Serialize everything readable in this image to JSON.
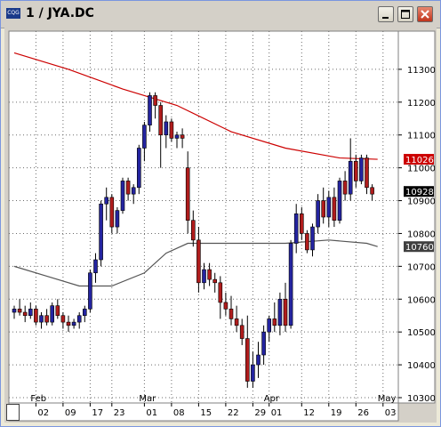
{
  "window": {
    "title": "1 / JYA.DC",
    "app_icon_label": "CQG",
    "icons": {
      "minimize": "minimize-icon",
      "maximize": "maximize-icon",
      "close": "close-icon"
    }
  },
  "chart_data": {
    "type": "candlestick",
    "symbol": "JYA.DC",
    "ylim": [
      10300,
      11400
    ],
    "y_ticks": [
      "11300",
      "11200",
      "11100",
      "11000",
      "10900",
      "10800",
      "10700",
      "10600",
      "10500",
      "10400",
      "10300"
    ],
    "month_labels": [
      {
        "label": "Feb",
        "bar": 4
      },
      {
        "label": "Mar",
        "bar": 24
      },
      {
        "label": "Apr",
        "bar": 47
      },
      {
        "label": "May",
        "bar": 68
      }
    ],
    "day_labels": [
      {
        "label": "02",
        "bar": 4
      },
      {
        "label": "09",
        "bar": 9
      },
      {
        "label": "17",
        "bar": 14
      },
      {
        "label": "23",
        "bar": 18
      },
      {
        "label": "01",
        "bar": 24
      },
      {
        "label": "08",
        "bar": 29
      },
      {
        "label": "15",
        "bar": 34
      },
      {
        "label": "22",
        "bar": 39
      },
      {
        "label": "29",
        "bar": 44
      },
      {
        "label": "01",
        "bar": 47
      },
      {
        "label": "12",
        "bar": 53
      },
      {
        "label": "19",
        "bar": 58
      },
      {
        "label": "26",
        "bar": 63
      },
      {
        "label": "03",
        "bar": 68
      }
    ],
    "price_labels": [
      {
        "label": "11026",
        "value": 11026,
        "color": "#cc0000",
        "text_color": "#ffffff"
      },
      {
        "label": "10928",
        "value": 10928,
        "color": "#000000",
        "text_color": "#ffffff"
      },
      {
        "label": "10760",
        "value": 10760,
        "color": "#404040",
        "text_color": "#ffffff"
      }
    ],
    "candles": [
      [
        10560,
        10580,
        10540,
        10570
      ],
      [
        10570,
        10600,
        10550,
        10560
      ],
      [
        10560,
        10580,
        10530,
        10550
      ],
      [
        10550,
        10590,
        10540,
        10570
      ],
      [
        10570,
        10580,
        10520,
        10530
      ],
      [
        10530,
        10560,
        10510,
        10550
      ],
      [
        10550,
        10570,
        10520,
        10530
      ],
      [
        10530,
        10590,
        10520,
        10580
      ],
      [
        10580,
        10600,
        10540,
        10550
      ],
      [
        10550,
        10560,
        10510,
        10530
      ],
      [
        10530,
        10550,
        10500,
        10520
      ],
      [
        10520,
        10540,
        10510,
        10530
      ],
      [
        10530,
        10560,
        10510,
        10550
      ],
      [
        10550,
        10580,
        10530,
        10570
      ],
      [
        10570,
        10690,
        10560,
        10680
      ],
      [
        10680,
        10740,
        10650,
        10720
      ],
      [
        10720,
        10900,
        10700,
        10890
      ],
      [
        10890,
        10940,
        10840,
        10910
      ],
      [
        10910,
        10920,
        10800,
        10820
      ],
      [
        10820,
        10880,
        10800,
        10870
      ],
      [
        10870,
        10970,
        10860,
        10960
      ],
      [
        10960,
        10970,
        10900,
        10920
      ],
      [
        10920,
        10950,
        10890,
        10940
      ],
      [
        10940,
        11070,
        10920,
        11060
      ],
      [
        11060,
        11140,
        11020,
        11130
      ],
      [
        11130,
        11230,
        11110,
        11220
      ],
      [
        11220,
        11230,
        11150,
        11190
      ],
      [
        11190,
        11200,
        11000,
        11100
      ],
      [
        11100,
        11160,
        11060,
        11140
      ],
      [
        11140,
        11150,
        11080,
        11090
      ],
      [
        11090,
        11110,
        11060,
        11100
      ],
      [
        11100,
        11120,
        11060,
        11090
      ],
      [
        11000,
        11050,
        10800,
        10840
      ],
      [
        10840,
        10870,
        10760,
        10780
      ],
      [
        10780,
        10820,
        10620,
        10650
      ],
      [
        10650,
        10710,
        10630,
        10690
      ],
      [
        10690,
        10710,
        10640,
        10660
      ],
      [
        10660,
        10680,
        10620,
        10650
      ],
      [
        10650,
        10670,
        10540,
        10590
      ],
      [
        10590,
        10620,
        10550,
        10570
      ],
      [
        10570,
        10610,
        10520,
        10540
      ],
      [
        10540,
        10580,
        10500,
        10520
      ],
      [
        10520,
        10540,
        10460,
        10480
      ],
      [
        10480,
        10550,
        10330,
        10350
      ],
      [
        10350,
        10440,
        10330,
        10400
      ],
      [
        10400,
        10470,
        10360,
        10430
      ],
      [
        10430,
        10520,
        10400,
        10500
      ],
      [
        10500,
        10550,
        10470,
        10540
      ],
      [
        10540,
        10590,
        10500,
        10520
      ],
      [
        10520,
        10620,
        10490,
        10600
      ],
      [
        10600,
        10650,
        10500,
        10520
      ],
      [
        10520,
        10780,
        10510,
        10770
      ],
      [
        10770,
        10890,
        10740,
        10860
      ],
      [
        10860,
        10880,
        10780,
        10800
      ],
      [
        10800,
        10810,
        10740,
        10750
      ],
      [
        10750,
        10830,
        10730,
        10820
      ],
      [
        10820,
        10920,
        10800,
        10900
      ],
      [
        10900,
        10940,
        10830,
        10850
      ],
      [
        10850,
        10930,
        10820,
        10910
      ],
      [
        10910,
        10940,
        10820,
        10840
      ],
      [
        10840,
        10970,
        10830,
        10960
      ],
      [
        10960,
        10990,
        10900,
        10920
      ],
      [
        10920,
        11090,
        10900,
        11020
      ],
      [
        11020,
        11040,
        10940,
        10960
      ],
      [
        10960,
        11040,
        10950,
        11030
      ],
      [
        11030,
        11040,
        10920,
        10940
      ],
      [
        10940,
        10950,
        10900,
        10920
      ]
    ],
    "series": [
      {
        "type": "moving-average",
        "color": "#cc0000",
        "values": [
          [
            0,
            11350
          ],
          [
            10,
            11300
          ],
          [
            20,
            11240
          ],
          [
            30,
            11190
          ],
          [
            40,
            11110
          ],
          [
            50,
            11060
          ],
          [
            60,
            11030
          ],
          [
            67,
            11026
          ]
        ]
      },
      {
        "type": "moving-average",
        "color": "#555555",
        "values": [
          [
            0,
            10700
          ],
          [
            6,
            10670
          ],
          [
            12,
            10640
          ],
          [
            18,
            10640
          ],
          [
            24,
            10680
          ],
          [
            28,
            10740
          ],
          [
            32,
            10770
          ],
          [
            40,
            10770
          ],
          [
            50,
            10770
          ],
          [
            58,
            10780
          ],
          [
            65,
            10770
          ],
          [
            67,
            10760
          ]
        ]
      }
    ],
    "grid": true,
    "background": "#ffffff",
    "up_color": "#2424a0",
    "down_color": "#b01c1c"
  }
}
